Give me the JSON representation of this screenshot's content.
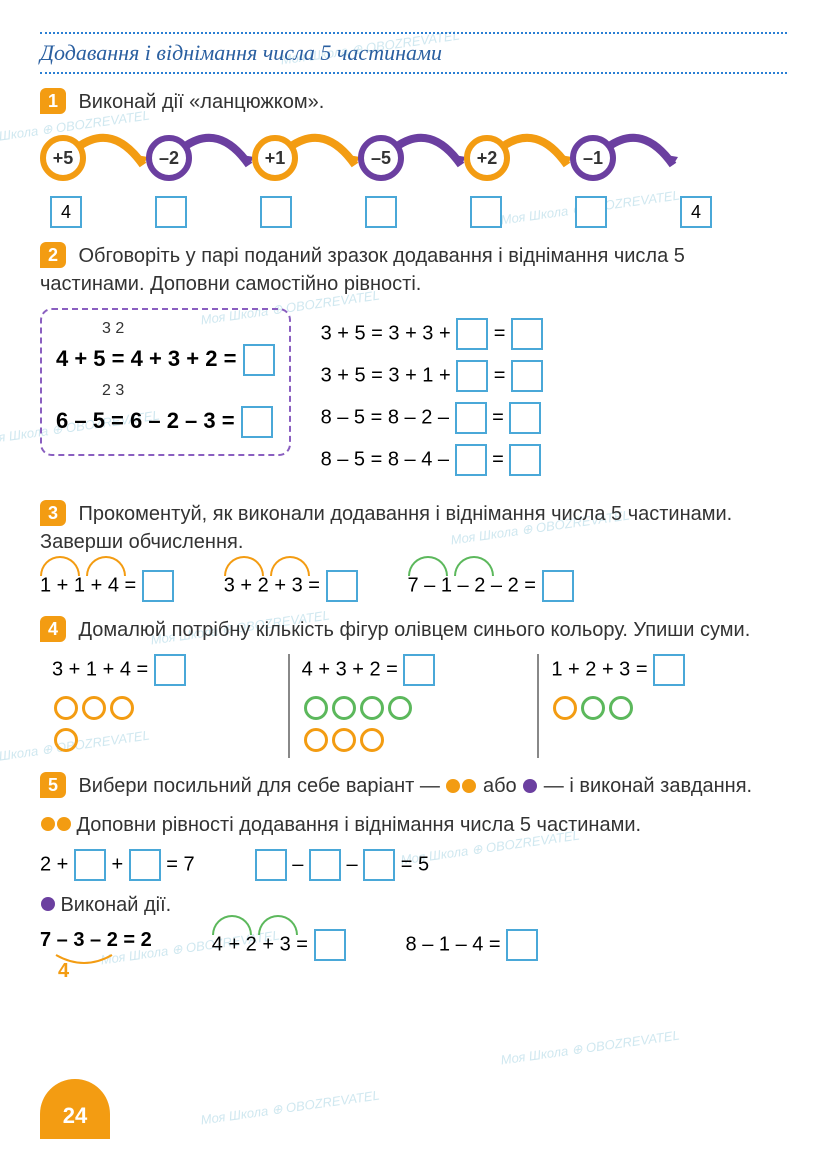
{
  "title": "Додавання і віднімання числа 5 частинами",
  "watermark_text": "Моя Школа ⊕ OBOZREVATEL",
  "page_number": "24",
  "colors": {
    "orange": "#f39c12",
    "purple": "#6b3fa0",
    "blue": "#4aa8d8",
    "green": "#5cb85c",
    "title_blue": "#2a5fa0",
    "box_border": "#4aa8d8"
  },
  "task1": {
    "num": "1",
    "text": "Виконай дії «ланцюжком».",
    "chain": [
      {
        "op": "+5",
        "color": "#f39c12"
      },
      {
        "op": "–2",
        "color": "#6b3fa0"
      },
      {
        "op": "+1",
        "color": "#f39c12"
      },
      {
        "op": "–5",
        "color": "#6b3fa0"
      },
      {
        "op": "+2",
        "color": "#f39c12"
      },
      {
        "op": "–1",
        "color": "#6b3fa0"
      }
    ],
    "start": "4",
    "end": "4"
  },
  "task2": {
    "num": "2",
    "text": "Обговоріть у парі поданий зразок додавання і віднімання числа 5 частинами. Доповни самостійно рівності.",
    "example": {
      "split1": "3 2",
      "line1_a": "4 + 5 = 4 + 3 + 2 =",
      "split2": "2 3",
      "line2_a": "6 – 5 = 6 – 2 – 3 ="
    },
    "equations": [
      "3 + 5 = 3 + 3 +",
      "3 + 5 = 3 + 1 +",
      "8 – 5 = 8 – 2 –",
      "8 – 5 = 8 – 4 –"
    ]
  },
  "task3": {
    "num": "3",
    "text": "Прокоментуй, як виконали додавання і віднімання числа 5 частинами. Заверши обчислення.",
    "equations": [
      {
        "eq": "1 + 1 + 4 =",
        "arc_color": "#f39c12"
      },
      {
        "eq": "3 + 2 + 3 =",
        "arc_color": "#f39c12"
      },
      {
        "eq": "7 – 1 – 2 – 2 =",
        "arc_color": "#5cb85c"
      }
    ]
  },
  "task4": {
    "num": "4",
    "text": "Домалюй потрібну кількість фігур олівцем синього кольору. Упиши суми.",
    "cols": [
      {
        "eq": "3 + 1 + 4 =",
        "circles": [
          [
            "#f39c12",
            "#f39c12",
            "#f39c12"
          ],
          [
            "#f39c12"
          ]
        ]
      },
      {
        "eq": "4 + 3 + 2 =",
        "circles": [
          [
            "#5cb85c",
            "#5cb85c",
            "#5cb85c",
            "#5cb85c"
          ],
          [
            "#f39c12",
            "#f39c12",
            "#f39c12"
          ]
        ]
      },
      {
        "eq": "1 + 2 + 3 =",
        "circles": [
          [
            "#f39c12",
            "#5cb85c",
            "#5cb85c"
          ]
        ]
      }
    ]
  },
  "task5": {
    "num": "5",
    "text_a": "Вибери посильний для себе варіант — ",
    "text_b": " або ",
    "text_c": " — і виконай завдання.",
    "sub1_text": "Доповни рівності додавання і віднімання числа 5 частинами.",
    "sub1_eq1": "2 +",
    "sub1_eq1b": "+",
    "sub1_eq1c": "= 7",
    "sub1_eq2a": "–",
    "sub1_eq2b": "–",
    "sub1_eq2c": "= 5",
    "sub2_text": "Виконай дії.",
    "sub2_eq1": "7 – 3 – 2 = 2",
    "sub2_brace": "4",
    "sub2_eq2": "4 + 2 + 3 =",
    "sub2_eq3": "8 – 1 – 4 ="
  }
}
